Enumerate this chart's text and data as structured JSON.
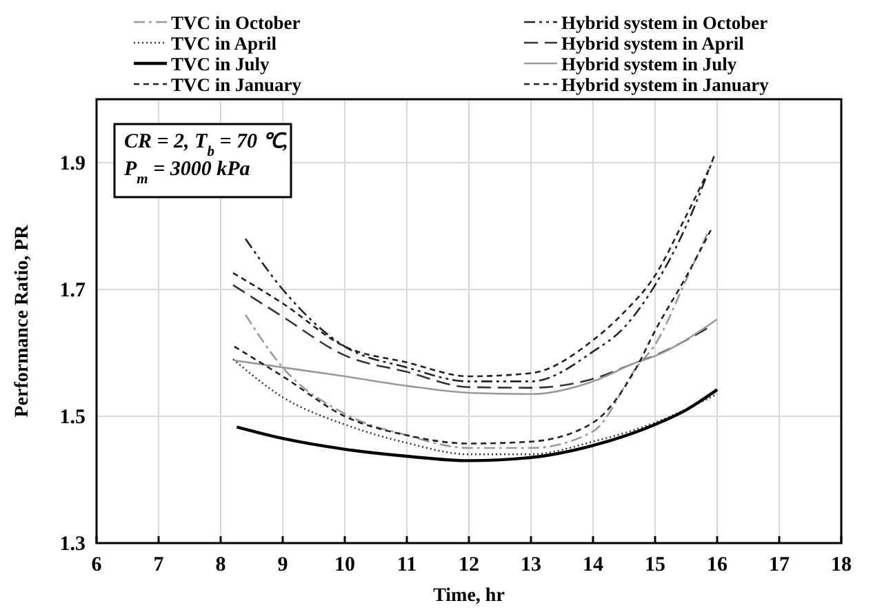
{
  "chart_data": {
    "type": "line",
    "xlabel": "Time, hr",
    "ylabel": "Performance Ratio, PR",
    "xlim": [
      6,
      18
    ],
    "xticks": [
      6,
      7,
      8,
      9,
      10,
      11,
      12,
      13,
      14,
      15,
      16,
      17,
      18
    ],
    "ylim": [
      1.3,
      2.0
    ],
    "yticks": [
      1.3,
      1.5,
      1.7,
      1.9
    ],
    "grid": true,
    "legend": "top",
    "marker": "none",
    "annotations": [
      "CR = 2, T$_{b}$ = 70 ℃,",
      "P$_{m}$ = 3000 kPa"
    ],
    "series": [
      {
        "name": "TVC in October",
        "color": "#999999",
        "line_style": "dashdot",
        "x": [
          8.4,
          9,
          10,
          11,
          12,
          13,
          14,
          14.7,
          15,
          15.5,
          15.85
        ],
        "values": [
          1.66,
          1.577,
          1.504,
          1.47,
          1.45,
          1.45,
          1.476,
          1.577,
          1.613,
          1.715,
          1.79
        ]
      },
      {
        "name": "Hybrid system in October",
        "color": "#222222",
        "line_style": "dashdotdot",
        "x": [
          8.4,
          9,
          10,
          11,
          12,
          13,
          14,
          14.5,
          15,
          15.5,
          15.95
        ],
        "values": [
          1.78,
          1.7,
          1.61,
          1.577,
          1.555,
          1.555,
          1.602,
          1.64,
          1.707,
          1.8,
          1.91
        ]
      },
      {
        "name": "TVC in April",
        "color": "#333333",
        "line_style": "dotted",
        "x": [
          8.2,
          9,
          10,
          11,
          12,
          13,
          14,
          15,
          16
        ],
        "values": [
          1.59,
          1.53,
          1.487,
          1.458,
          1.44,
          1.44,
          1.46,
          1.49,
          1.535
        ]
      },
      {
        "name": "Hybrid system in April",
        "color": "#333333",
        "line_style": "longdash",
        "x": [
          8.2,
          9,
          10,
          11,
          12,
          13,
          14,
          14.7,
          15,
          15.5,
          15.9
        ],
        "values": [
          1.707,
          1.657,
          1.596,
          1.57,
          1.546,
          1.545,
          1.559,
          1.585,
          1.596,
          1.62,
          1.642
        ]
      },
      {
        "name": "TVC in July",
        "color": "#000000",
        "line_style": "solid",
        "x": [
          8.26,
          9,
          10,
          11,
          12,
          13,
          14,
          15,
          15.5,
          16
        ],
        "values": [
          1.483,
          1.465,
          1.448,
          1.437,
          1.43,
          1.435,
          1.454,
          1.487,
          1.51,
          1.542
        ]
      },
      {
        "name": "Hybrid system in July",
        "color": "#999999",
        "line_style": "solid",
        "x": [
          8.22,
          9,
          10,
          11,
          12,
          13,
          14,
          14.7,
          15,
          16
        ],
        "values": [
          1.588,
          1.577,
          1.563,
          1.548,
          1.537,
          1.535,
          1.555,
          1.585,
          1.595,
          1.653
        ]
      },
      {
        "name": "TVC in January",
        "color": "#222222",
        "line_style": "dashed",
        "x": [
          8.22,
          9,
          10,
          11,
          12,
          13,
          14,
          14.7,
          15,
          15.5,
          15.9
        ],
        "values": [
          1.61,
          1.563,
          1.5,
          1.47,
          1.457,
          1.46,
          1.49,
          1.577,
          1.635,
          1.72,
          1.794
        ]
      },
      {
        "name": "Hybrid system in January",
        "color": "#222222",
        "line_style": "dashed",
        "x": [
          8.2,
          9,
          10,
          11,
          12,
          13,
          14,
          14.5,
          15,
          15.5,
          15.9
        ],
        "values": [
          1.726,
          1.678,
          1.61,
          1.585,
          1.563,
          1.568,
          1.62,
          1.664,
          1.722,
          1.816,
          1.896
        ]
      }
    ]
  }
}
